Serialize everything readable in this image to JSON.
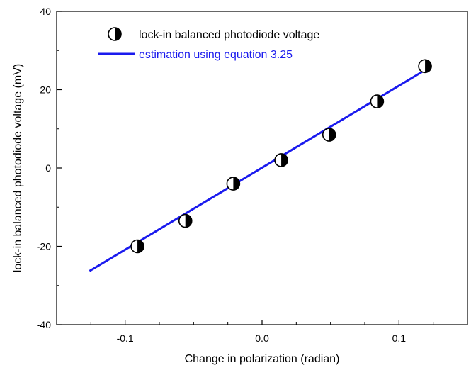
{
  "chart_data": {
    "type": "scatter",
    "title": "",
    "xlabel": "Change in polarization (radian)",
    "ylabel": "lock-in balanced photodiode voltage (mV)",
    "xlim": [
      -0.15,
      0.15
    ],
    "ylim": [
      -40,
      40
    ],
    "x_ticks": [
      -0.1,
      0.0,
      0.1
    ],
    "x_tick_labels": [
      "-0.1",
      "0.0",
      "0.1"
    ],
    "x_minor_step": 0.025,
    "y_ticks": [
      -40,
      -20,
      0,
      20,
      40
    ],
    "y_tick_labels": [
      "-40",
      "-20",
      "0",
      "20",
      "40"
    ],
    "y_minor_step": 10,
    "grid": false,
    "legend_position": "top-left",
    "series": [
      {
        "name": "lock-in balanced photodiode voltage",
        "kind": "scatter",
        "marker": "half-filled-circle",
        "color": "#000000",
        "x": [
          -0.091,
          -0.056,
          -0.021,
          0.014,
          0.049,
          0.084,
          0.119
        ],
        "y": [
          -20.0,
          -13.5,
          -4.0,
          2.0,
          8.5,
          17.0,
          26.0
        ]
      },
      {
        "name": "estimation using equation 3.25",
        "kind": "line",
        "color": "#1a1aee",
        "x": [
          -0.126,
          0.119
        ],
        "y": [
          -26.3,
          25.0
        ]
      }
    ]
  }
}
